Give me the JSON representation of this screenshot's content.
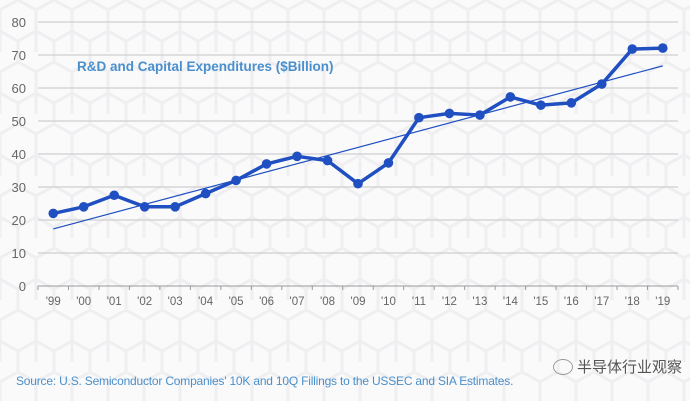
{
  "chart_data": {
    "type": "line",
    "title": "R&D and Capital Expenditures ($Billion)",
    "xlabel": "",
    "ylabel": "",
    "categories": [
      "'99",
      "'00",
      "'01",
      "'02",
      "'03",
      "'04",
      "'05",
      "'06",
      "'07",
      "'08",
      "'09",
      "'10",
      "'11",
      "'12",
      "'13",
      "'14",
      "'15",
      "'16",
      "'17",
      "'18",
      "'19"
    ],
    "series": [
      {
        "name": "R&D and Capital Expenditures",
        "color": "#1f4fc1",
        "values": [
          22,
          24,
          27.5,
          24,
          24,
          28,
          32,
          37,
          39.3,
          38,
          31,
          37.3,
          51,
          52.3,
          51.8,
          57.3,
          54.8,
          55.5,
          61.2,
          71.8,
          72.1
        ]
      },
      {
        "name": "Linear trend",
        "color": "#1f4fc1",
        "type": "trendline",
        "start": 17.3,
        "end": 66.7
      }
    ],
    "ylim": [
      0,
      80
    ],
    "yticks": [
      0,
      10,
      20,
      30,
      40,
      50,
      60,
      70,
      80
    ],
    "grid": true,
    "legend": "none"
  },
  "footer": {
    "source": "Source: U.S. Semiconductor Companies' 10K and 10Q Fillings to the USSEC and SIA Estimates.",
    "watermark": "半导体行业观察"
  },
  "colors": {
    "line": "#1f4fc1",
    "title": "#4a8fcd",
    "grid": "#cfcfcf",
    "axis_text": "#666666"
  }
}
